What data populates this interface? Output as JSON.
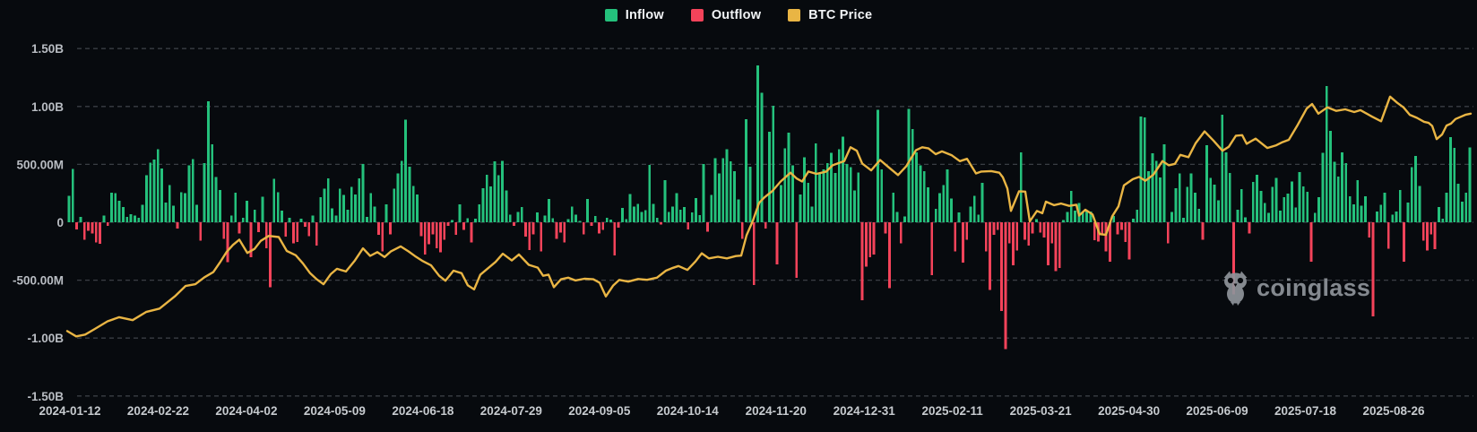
{
  "app": {
    "watermark_text": "coinglass"
  },
  "legend": {
    "items": [
      {
        "label": "Inflow",
        "color": "#24c17c"
      },
      {
        "label": "Outflow",
        "color": "#f4435a"
      },
      {
        "label": "BTC Price",
        "color": "#e9b544"
      }
    ]
  },
  "colors": {
    "background": "#070a0e",
    "grid": "#3a3e44",
    "y_axis_text": "#b9bdc3",
    "x_axis_text": "#c6cace",
    "inflow": "#24c17c",
    "outflow": "#f4435a",
    "price": "#e9b544",
    "watermark": "#8f949b"
  },
  "chart_data": {
    "type": "bar",
    "title": "",
    "xlabel": "",
    "ylabel": "",
    "grid": true,
    "legend_position": "top-center",
    "y_axis": {
      "unit": "USD",
      "range_millions": [
        -1500,
        1500
      ],
      "ticks": [
        {
          "label": "1.50B",
          "value": 1500
        },
        {
          "label": "1.00B",
          "value": 1000
        },
        {
          "label": "500.00M",
          "value": 500
        },
        {
          "label": "0",
          "value": 0
        },
        {
          "label": "-500.00M",
          "value": -500
        },
        {
          "label": "-1.00B",
          "value": -1000
        },
        {
          "label": "-1.50B",
          "value": -1500
        }
      ]
    },
    "x_axis": {
      "ticks": [
        "2024-01-12",
        "2024-02-22",
        "2024-04-02",
        "2024-05-09",
        "2024-06-18",
        "2024-07-29",
        "2024-09-05",
        "2024-10-14",
        "2024-11-20",
        "2024-12-31",
        "2025-02-11",
        "2025-03-21",
        "2025-04-30",
        "2025-06-09",
        "2025-07-18",
        "2025-08-26"
      ]
    },
    "series": [
      {
        "name": "Inflow/Outflow",
        "type": "bar",
        "unit": "millions USD (positive = inflow, negative = outflow)",
        "values": [
          230,
          460,
          -60,
          45,
          -150,
          -75,
          -95,
          -175,
          -185,
          60,
          -30,
          255,
          250,
          185,
          130,
          45,
          70,
          60,
          40,
          150,
          405,
          515,
          540,
          630,
          465,
          170,
          320,
          145,
          -55,
          260,
          250,
          490,
          545,
          150,
          -160,
          510,
          1045,
          675,
          390,
          280,
          -145,
          -345,
          60,
          255,
          -95,
          40,
          185,
          -300,
          110,
          -85,
          220,
          -225,
          -560,
          375,
          260,
          100,
          -125,
          40,
          -180,
          -170,
          30,
          -40,
          -120,
          60,
          -200,
          215,
          290,
          380,
          120,
          60,
          290,
          235,
          110,
          305,
          240,
          380,
          505,
          45,
          250,
          135,
          -110,
          -250,
          155,
          -105,
          290,
          420,
          530,
          886,
          480,
          315,
          240,
          -120,
          -280,
          -190,
          -105,
          -225,
          -260,
          -150,
          -30,
          20,
          -110,
          155,
          -65,
          35,
          -175,
          30,
          155,
          295,
          410,
          310,
          527,
          405,
          532,
          275,
          65,
          -30,
          90,
          130,
          -125,
          -240,
          -105,
          85,
          -250,
          60,
          200,
          35,
          -145,
          -90,
          -175,
          28,
          135,
          65,
          12,
          -105,
          202,
          -30,
          55,
          -95,
          -65,
          38,
          25,
          -288,
          -45,
          125,
          28,
          245,
          135,
          160,
          90,
          105,
          495,
          160,
          40,
          -20,
          365,
          90,
          135,
          250,
          110,
          130,
          -60,
          85,
          210,
          62,
          505,
          -80,
          235,
          555,
          420,
          555,
          630,
          525,
          440,
          198,
          -145,
          890,
          480,
          -540,
          1355,
          1120,
          -55,
          780,
          1005,
          -365,
          320,
          640,
          775,
          490,
          -480,
          240,
          560,
          340,
          135,
          680,
          425,
          455,
          510,
          598,
          425,
          630,
          740,
          505,
          475,
          275,
          430,
          -672,
          -385,
          -300,
          -278,
          972,
          455,
          -95,
          -570,
          255,
          90,
          -180,
          52,
          978,
          805,
          605,
          490,
          440,
          300,
          -455,
          115,
          250,
          320,
          455,
          205,
          -250,
          85,
          -350,
          -150,
          135,
          230,
          65,
          340,
          -250,
          -585,
          -110,
          -65,
          -765,
          -1095,
          -180,
          -370,
          -245,
          605,
          -150,
          -200,
          -95,
          28,
          -88,
          -132,
          -370,
          -180,
          -420,
          -395,
          20,
          90,
          270,
          100,
          165,
          85,
          100,
          92,
          -155,
          -165,
          -95,
          -250,
          -340,
          55,
          -105,
          -65,
          -172,
          -320,
          30,
          108,
          912,
          905,
          440,
          595,
          530,
          388,
          675,
          -182,
          90,
          295,
          420,
          38,
          305,
          420,
          255,
          115,
          -150,
          667,
          385,
          325,
          190,
          928,
          605,
          425,
          -622,
          110,
          285,
          42,
          -95,
          350,
          412,
          270,
          168,
          82,
          305,
          385,
          102,
          218,
          248,
          352,
          128,
          435,
          308,
          262,
          -342,
          80,
          218,
          601,
          1175,
          790,
          524,
          395,
          602,
          510,
          226,
          155,
          363,
          142,
          226,
          -131,
          -814,
          92,
          152,
          254,
          -230,
          65,
          91,
          277,
          -341,
          172,
          475,
          571,
          312,
          -158,
          -245,
          -105,
          -232,
          133,
          30,
          255,
          737,
          642,
          332,
          179,
          254,
          645
        ]
      },
      {
        "name": "BTC Price",
        "type": "line",
        "note": "price plotted on hidden right axis; points stored as [x_px, left-axis-equivalent value in millions]",
        "points": [
          [
            75,
            -940
          ],
          [
            85,
            -985
          ],
          [
            95,
            -970
          ],
          [
            105,
            -925
          ],
          [
            120,
            -855
          ],
          [
            133,
            -820
          ],
          [
            148,
            -845
          ],
          [
            163,
            -775
          ],
          [
            178,
            -745
          ],
          [
            195,
            -640
          ],
          [
            207,
            -550
          ],
          [
            218,
            -535
          ],
          [
            228,
            -475
          ],
          [
            238,
            -430
          ],
          [
            246,
            -340
          ],
          [
            253,
            -255
          ],
          [
            260,
            -195
          ],
          [
            267,
            -150
          ],
          [
            276,
            -265
          ],
          [
            284,
            -230
          ],
          [
            291,
            -160
          ],
          [
            300,
            -118
          ],
          [
            311,
            -128
          ],
          [
            320,
            -248
          ],
          [
            330,
            -285
          ],
          [
            338,
            -355
          ],
          [
            346,
            -440
          ],
          [
            353,
            -490
          ],
          [
            361,
            -535
          ],
          [
            369,
            -448
          ],
          [
            376,
            -402
          ],
          [
            386,
            -425
          ],
          [
            396,
            -330
          ],
          [
            405,
            -225
          ],
          [
            413,
            -290
          ],
          [
            421,
            -258
          ],
          [
            429,
            -300
          ],
          [
            436,
            -252
          ],
          [
            447,
            -208
          ],
          [
            456,
            -252
          ],
          [
            463,
            -292
          ],
          [
            471,
            -332
          ],
          [
            481,
            -372
          ],
          [
            490,
            -462
          ],
          [
            497,
            -505
          ],
          [
            506,
            -418
          ],
          [
            515,
            -440
          ],
          [
            522,
            -545
          ],
          [
            529,
            -580
          ],
          [
            536,
            -452
          ],
          [
            546,
            -388
          ],
          [
            553,
            -342
          ],
          [
            561,
            -272
          ],
          [
            571,
            -330
          ],
          [
            579,
            -278
          ],
          [
            590,
            -368
          ],
          [
            600,
            -392
          ],
          [
            606,
            -462
          ],
          [
            612,
            -452
          ],
          [
            618,
            -560
          ],
          [
            626,
            -492
          ],
          [
            634,
            -478
          ],
          [
            642,
            -502
          ],
          [
            652,
            -488
          ],
          [
            662,
            -492
          ],
          [
            669,
            -522
          ],
          [
            676,
            -640
          ],
          [
            684,
            -548
          ],
          [
            691,
            -498
          ],
          [
            701,
            -512
          ],
          [
            712,
            -490
          ],
          [
            722,
            -497
          ],
          [
            733,
            -478
          ],
          [
            743,
            -418
          ],
          [
            751,
            -393
          ],
          [
            757,
            -378
          ],
          [
            767,
            -412
          ],
          [
            776,
            -338
          ],
          [
            783,
            -268
          ],
          [
            791,
            -312
          ],
          [
            801,
            -298
          ],
          [
            811,
            -312
          ],
          [
            821,
            -292
          ],
          [
            827,
            -288
          ],
          [
            833,
            -112
          ],
          [
            840,
            12
          ],
          [
            847,
            168
          ],
          [
            853,
            215
          ],
          [
            862,
            272
          ],
          [
            871,
            352
          ],
          [
            882,
            428
          ],
          [
            889,
            378
          ],
          [
            895,
            352
          ],
          [
            902,
            438
          ],
          [
            911,
            418
          ],
          [
            922,
            438
          ],
          [
            929,
            492
          ],
          [
            942,
            528
          ],
          [
            949,
            648
          ],
          [
            956,
            618
          ],
          [
            962,
            508
          ],
          [
            972,
            448
          ],
          [
            982,
            538
          ],
          [
            991,
            478
          ],
          [
            1002,
            408
          ],
          [
            1011,
            482
          ],
          [
            1022,
            622
          ],
          [
            1029,
            648
          ],
          [
            1036,
            638
          ],
          [
            1044,
            588
          ],
          [
            1051,
            612
          ],
          [
            1062,
            578
          ],
          [
            1071,
            528
          ],
          [
            1079,
            548
          ],
          [
            1089,
            422
          ],
          [
            1095,
            438
          ],
          [
            1106,
            442
          ],
          [
            1115,
            428
          ],
          [
            1119,
            388
          ],
          [
            1124,
            292
          ],
          [
            1128,
            98
          ],
          [
            1137,
            268
          ],
          [
            1144,
            265
          ],
          [
            1149,
            8
          ],
          [
            1157,
            98
          ],
          [
            1163,
            78
          ],
          [
            1167,
            178
          ],
          [
            1176,
            148
          ],
          [
            1184,
            162
          ],
          [
            1193,
            142
          ],
          [
            1201,
            152
          ],
          [
            1204,
            58
          ],
          [
            1211,
            108
          ],
          [
            1219,
            68
          ],
          [
            1227,
            -102
          ],
          [
            1234,
            -108
          ],
          [
            1241,
            52
          ],
          [
            1248,
            138
          ],
          [
            1254,
            318
          ],
          [
            1264,
            372
          ],
          [
            1271,
            392
          ],
          [
            1278,
            358
          ],
          [
            1287,
            412
          ],
          [
            1297,
            528
          ],
          [
            1304,
            492
          ],
          [
            1311,
            505
          ],
          [
            1317,
            582
          ],
          [
            1326,
            562
          ],
          [
            1334,
            682
          ],
          [
            1344,
            785
          ],
          [
            1354,
            705
          ],
          [
            1364,
            618
          ],
          [
            1371,
            652
          ],
          [
            1379,
            748
          ],
          [
            1386,
            752
          ],
          [
            1391,
            678
          ],
          [
            1401,
            722
          ],
          [
            1414,
            642
          ],
          [
            1424,
            665
          ],
          [
            1431,
            692
          ],
          [
            1438,
            712
          ],
          [
            1448,
            842
          ],
          [
            1458,
            982
          ],
          [
            1464,
            1022
          ],
          [
            1471,
            938
          ],
          [
            1481,
            992
          ],
          [
            1491,
            962
          ],
          [
            1501,
            975
          ],
          [
            1511,
            952
          ],
          [
            1518,
            968
          ],
          [
            1531,
            912
          ],
          [
            1541,
            872
          ],
          [
            1551,
            1085
          ],
          [
            1559,
            1032
          ],
          [
            1566,
            992
          ],
          [
            1573,
            928
          ],
          [
            1581,
            902
          ],
          [
            1589,
            868
          ],
          [
            1594,
            858
          ],
          [
            1598,
            832
          ],
          [
            1603,
            718
          ],
          [
            1609,
            758
          ],
          [
            1614,
            835
          ],
          [
            1619,
            852
          ],
          [
            1624,
            892
          ],
          [
            1629,
            908
          ],
          [
            1635,
            928
          ],
          [
            1641,
            938
          ]
        ]
      }
    ]
  }
}
